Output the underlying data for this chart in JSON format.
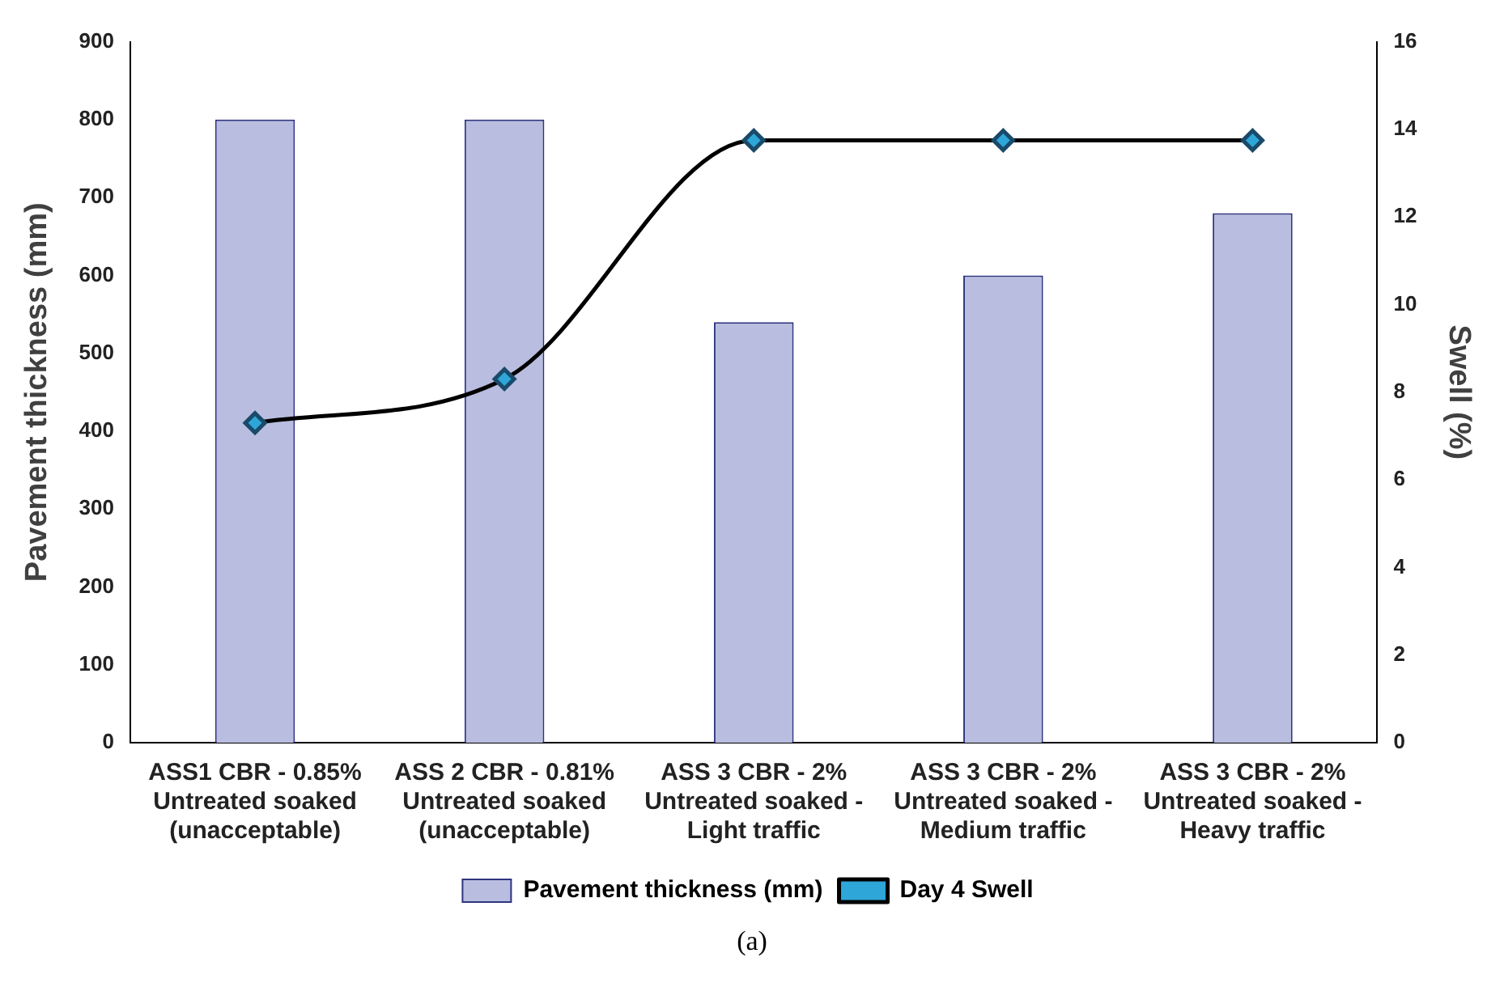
{
  "chart_data": {
    "type": "bar",
    "ylabel": "Pavement thickness (mm)",
    "y2label": "Swell (%)",
    "categories": [
      "ASS1 CBR - 0.85%\nUntreated soaked\n(unacceptable)",
      "ASS 2 CBR - 0.81%\nUntreated soaked\n(unacceptable)",
      "ASS 3 CBR - 2%\nUntreated soaked -\nLight traffic",
      "ASS 3 CBR - 2%\nUntreated soaked -\nMedium traffic",
      "ASS 3 CBR - 2%\nUntreated soaked -\nHeavy traffic"
    ],
    "series": [
      {
        "name": "Pavement thickness (mm)",
        "color": "#b9bddf",
        "values": [
          800,
          800,
          540,
          600,
          680
        ]
      },
      {
        "name": "Day 4 Swell",
        "type": "line",
        "axis": "y2",
        "color": "#2ea6d8",
        "marker": "diamond",
        "values": [
          7.3,
          8.3,
          13.75,
          13.75,
          13.75
        ]
      }
    ],
    "ylim": [
      0,
      900
    ],
    "yticks": [
      0,
      100,
      200,
      300,
      400,
      500,
      600,
      700,
      800,
      900
    ],
    "y2lim": [
      0,
      16
    ],
    "y2ticks": [
      0,
      2,
      4,
      6,
      8,
      10,
      12,
      14,
      16
    ],
    "grid": false,
    "legend": "bottom",
    "annotations": [
      "(a)"
    ]
  }
}
